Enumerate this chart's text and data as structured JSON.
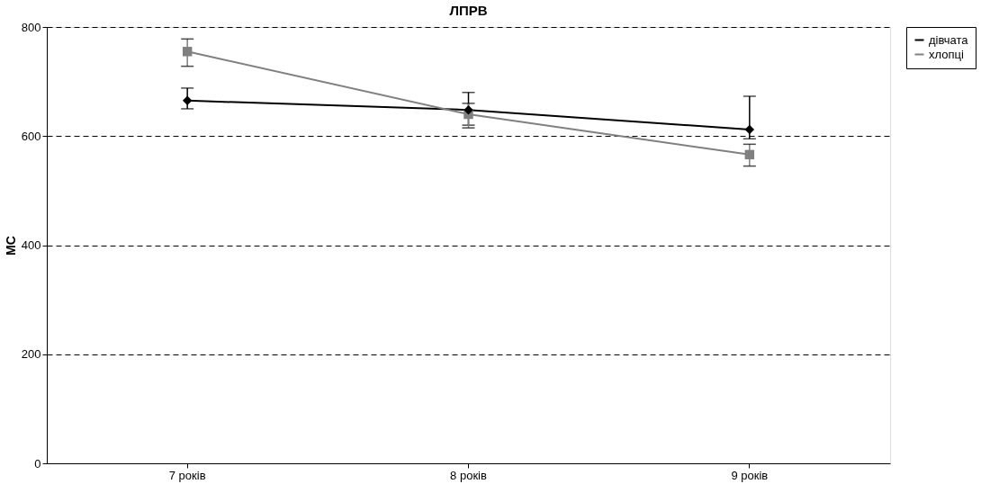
{
  "chart_data": {
    "type": "line",
    "title": "ЛПРВ",
    "ylabel": "МС",
    "categories": [
      "7 років",
      "8 років",
      "9 років"
    ],
    "series": [
      {
        "name": "дівчата",
        "color": "#000000",
        "marker": "diamond",
        "values": [
          665,
          648,
          612
        ],
        "errors": [
          [
            650,
            688
          ],
          [
            620,
            680
          ],
          [
            595,
            673
          ]
        ]
      },
      {
        "name": "хлопці",
        "color": "#808080",
        "marker": "square",
        "values": [
          755,
          640,
          566
        ],
        "errors": [
          [
            728,
            778
          ],
          [
            615,
            660
          ],
          [
            545,
            585
          ]
        ]
      }
    ],
    "ylim": [
      0,
      800
    ],
    "yticks": [
      0,
      200,
      400,
      600,
      800
    ],
    "grid": "y",
    "legend": "right",
    "line_style": "solid"
  }
}
